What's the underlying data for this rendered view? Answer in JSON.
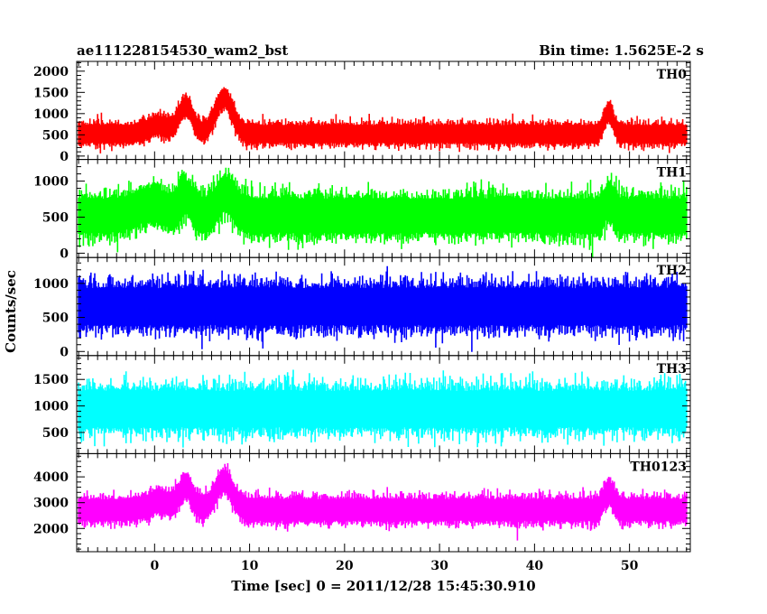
{
  "chart_data": {
    "type": "line",
    "title": "ae111228154530_wam2_bst",
    "subtitle": "Bin time: 1.5625E-2 s",
    "xlabel": "Time [sec] 0 = 2011/12/28 15:45:30.910",
    "ylabel": "Counts/sec",
    "xlim": [
      -8.2,
      56.4
    ],
    "x_data_range": [
      -8.0,
      56.0
    ],
    "x_ticks": [
      0,
      10,
      20,
      30,
      40,
      50
    ],
    "x_tick_labels": [
      "0",
      "10",
      "20",
      "30",
      "40",
      "50"
    ],
    "bin_time": 0.015625,
    "sample_step": 0.1,
    "panels": [
      {
        "name": "TH0",
        "color": "#ff0000",
        "ylim": [
          -80,
          2230
        ],
        "y_ticks": [
          0,
          500,
          1000,
          1500,
          2000
        ],
        "y_tick_labels": [
          "0",
          "500",
          "1000",
          "1500",
          "2000"
        ],
        "baseline": 520,
        "noise": 230,
        "peaks": [
          {
            "t": 0.5,
            "amp": 200,
            "w": 1.2
          },
          {
            "t": 3.3,
            "amp": 650,
            "w": 0.7
          },
          {
            "t": 7.3,
            "amp": 850,
            "w": 0.9
          },
          {
            "t": 47.8,
            "amp": 500,
            "w": 0.5
          }
        ]
      },
      {
        "name": "TH1",
        "color": "#00ff00",
        "ylim": [
          -60,
          1300
        ],
        "y_ticks": [
          0,
          500,
          1000
        ],
        "y_tick_labels": [
          "0",
          "500",
          "1000"
        ],
        "baseline": 520,
        "noise": 260,
        "peaks": [
          {
            "t": -0.5,
            "amp": 150,
            "w": 1.5
          },
          {
            "t": 3.3,
            "amp": 250,
            "w": 0.7
          },
          {
            "t": 7.5,
            "amp": 300,
            "w": 0.9
          },
          {
            "t": 47.8,
            "amp": 200,
            "w": 0.5
          }
        ]
      },
      {
        "name": "TH2",
        "color": "#0000ff",
        "ylim": [
          -60,
          1380
        ],
        "y_ticks": [
          0,
          500,
          1000
        ],
        "y_tick_labels": [
          "0",
          "500",
          "1000"
        ],
        "baseline": 660,
        "noise": 300,
        "peaks": []
      },
      {
        "name": "TH3",
        "color": "#00ffff",
        "ylim": [
          100,
          1950
        ],
        "y_ticks": [
          500,
          1000,
          1500
        ],
        "y_tick_labels": [
          "500",
          "1000",
          "1500"
        ],
        "baseline": 940,
        "noise": 380,
        "peaks": []
      },
      {
        "name": "TH0123",
        "color": "#ff00ff",
        "ylim": [
          1100,
          4900
        ],
        "y_ticks": [
          2000,
          3000,
          4000
        ],
        "y_tick_labels": [
          "2000",
          "3000",
          "4000"
        ],
        "baseline": 2720,
        "noise": 460,
        "peaks": [
          {
            "t": 0.5,
            "amp": 300,
            "w": 1.2
          },
          {
            "t": 3.3,
            "amp": 900,
            "w": 0.7
          },
          {
            "t": 7.3,
            "amp": 1100,
            "w": 0.9
          },
          {
            "t": 47.8,
            "amp": 700,
            "w": 0.5
          }
        ]
      }
    ]
  }
}
